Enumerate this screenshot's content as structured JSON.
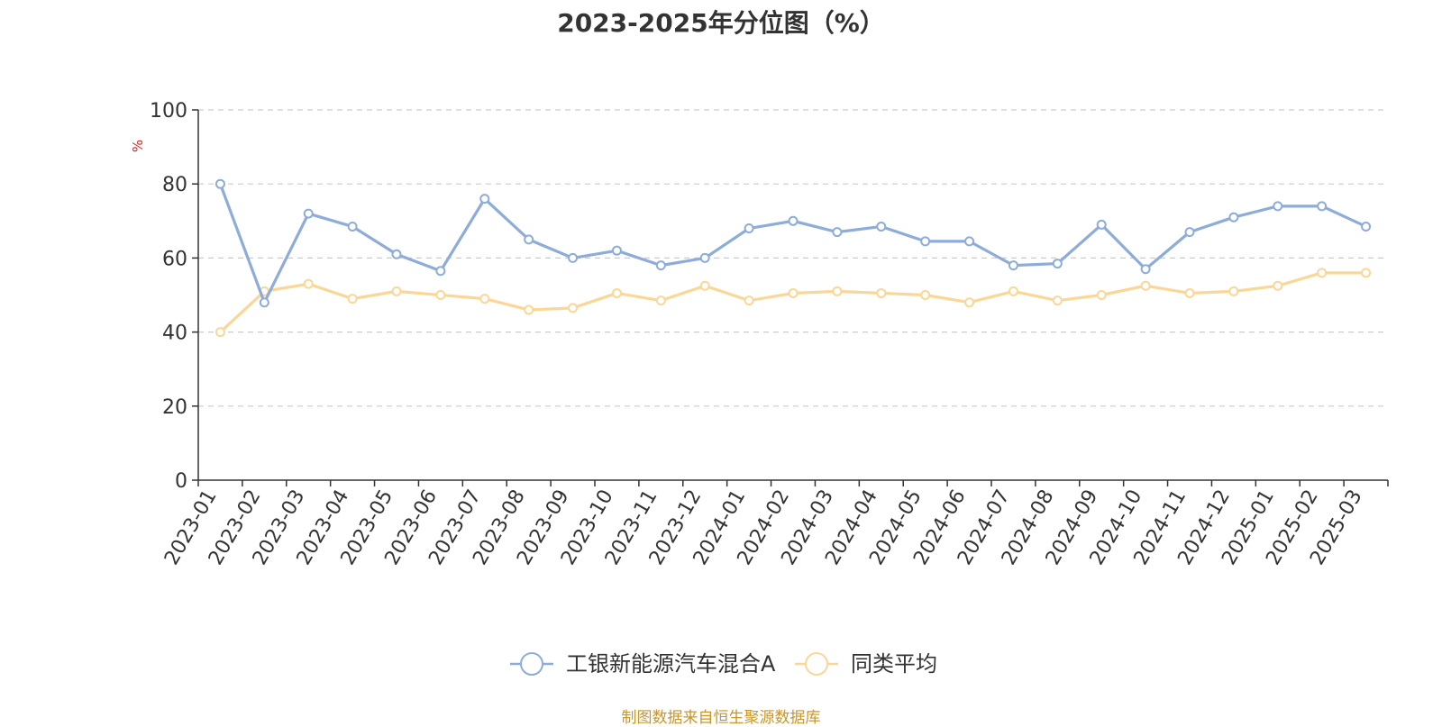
{
  "chart_data": {
    "type": "line",
    "title": "2023-2025年分位图（%）",
    "ylabel": "%",
    "xlabel": "",
    "ylim": [
      0,
      100
    ],
    "yticks": [
      0,
      20,
      40,
      60,
      80,
      100
    ],
    "grid": true,
    "legend_position": "bottom",
    "categories": [
      "2023-01",
      "2023-02",
      "2023-03",
      "2023-04",
      "2023-05",
      "2023-06",
      "2023-07",
      "2023-08",
      "2023-09",
      "2023-10",
      "2023-11",
      "2023-12",
      "2024-01",
      "2024-02",
      "2024-03",
      "2024-04",
      "2024-05",
      "2024-06",
      "2024-07",
      "2024-08",
      "2024-09",
      "2024-10",
      "2024-11",
      "2024-12",
      "2025-01",
      "2025-02",
      "2025-03"
    ],
    "series": [
      {
        "name": "工银新能源汽车混合A",
        "color": "#8eacd8",
        "values": [
          80,
          48,
          72,
          68.5,
          61,
          56.5,
          76,
          65,
          60,
          62,
          58,
          60,
          68,
          70,
          67,
          68.5,
          64.5,
          64.5,
          58,
          58.5,
          69,
          57,
          67,
          71,
          74,
          74,
          68.5
        ]
      },
      {
        "name": "同类平均",
        "color": "#fad796",
        "values": [
          40,
          51,
          53,
          49,
          51,
          50,
          49,
          46,
          46.5,
          50.5,
          48.5,
          52.5,
          48.5,
          50.5,
          51,
          50.5,
          50,
          48,
          51,
          48.5,
          50,
          52.5,
          50.5,
          51,
          52.5,
          56,
          56
        ]
      }
    ]
  },
  "source_note": "制图数据来自恒生聚源数据库"
}
